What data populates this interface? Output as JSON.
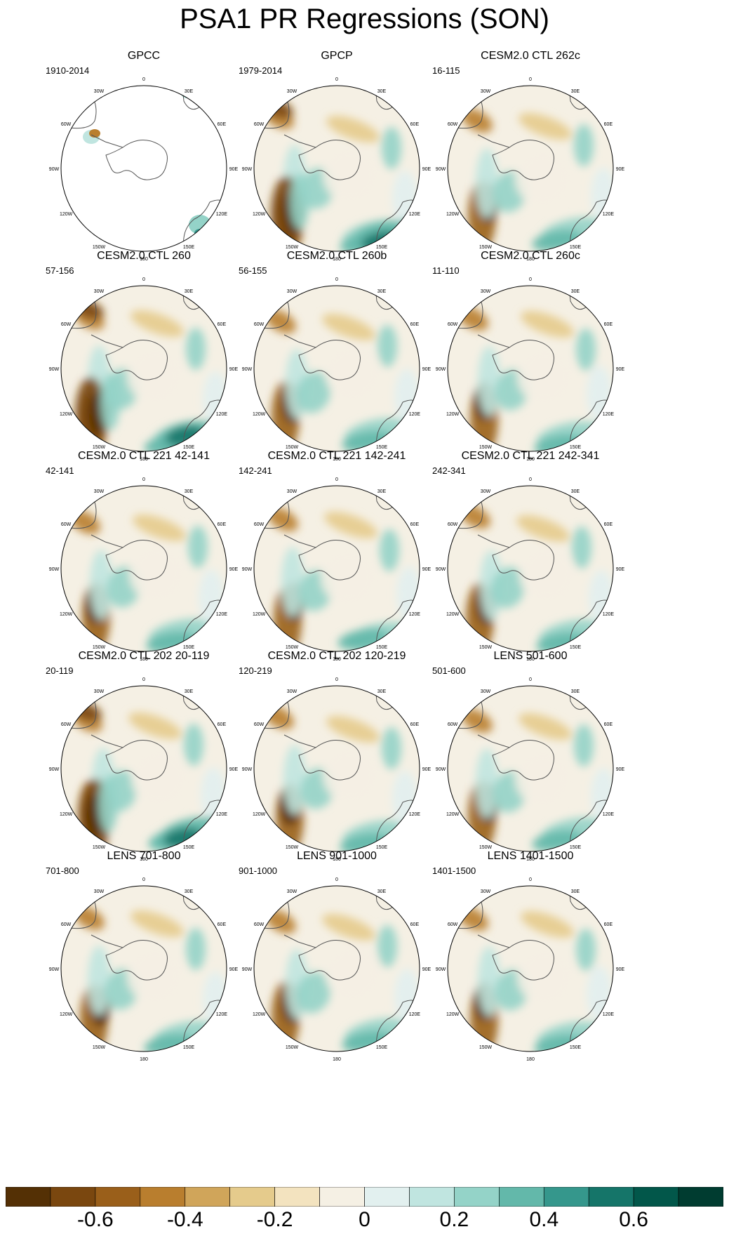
{
  "title": "PSA1 PR Regressions (SON)",
  "chart_data": {
    "type": "heatmap",
    "projection": "south polar stereographic",
    "longitude_labels": [
      "0",
      "30E",
      "60E",
      "90E",
      "120E",
      "150E",
      "180",
      "150W",
      "120W",
      "90W",
      "60W",
      "30W"
    ],
    "panels": [
      {
        "title": "GPCC",
        "years": "1910-2014"
      },
      {
        "title": "GPCP",
        "years": "1979-2014"
      },
      {
        "title": "CESM2.0 CTL 262c",
        "years": "16-115"
      },
      {
        "title": "CESM2.0 CTL 260",
        "years": "57-156"
      },
      {
        "title": "CESM2.0 CTL 260b",
        "years": "56-155"
      },
      {
        "title": "CESM2.0 CTL 260c",
        "years": "11-110"
      },
      {
        "title": "CESM2.0 CTL 221 42-141",
        "years": "42-141"
      },
      {
        "title": "CESM2.0 CTL 221 142-241",
        "years": "142-241"
      },
      {
        "title": "CESM2.0 CTL 221 242-341",
        "years": "242-341"
      },
      {
        "title": "CESM2.0 CTL 202 20-119",
        "years": "20-119"
      },
      {
        "title": "CESM2.0 CTL 202 120-219",
        "years": "120-219"
      },
      {
        "title": "LENS 501-600",
        "years": "501-600"
      },
      {
        "title": "LENS 701-800",
        "years": "701-800"
      },
      {
        "title": "LENS 901-1000",
        "years": "901-1000"
      },
      {
        "title": "LENS 1401-1500",
        "years": "1401-1500"
      }
    ],
    "colorbar": {
      "colors": [
        "#543005",
        "#7a470f",
        "#9a5f1a",
        "#b97e2e",
        "#d0a55a",
        "#e5cb8c",
        "#f3e3bf",
        "#f5f0e4",
        "#e2f0ef",
        "#c0e5e0",
        "#94d3c8",
        "#63b8aa",
        "#35978c",
        "#157569",
        "#02574a",
        "#003c30"
      ],
      "tick_labels": [
        "-0.6",
        "-0.4",
        "-0.2",
        "0",
        "0.2",
        "0.4",
        "0.6"
      ],
      "range": [
        -0.8,
        0.8
      ]
    }
  }
}
